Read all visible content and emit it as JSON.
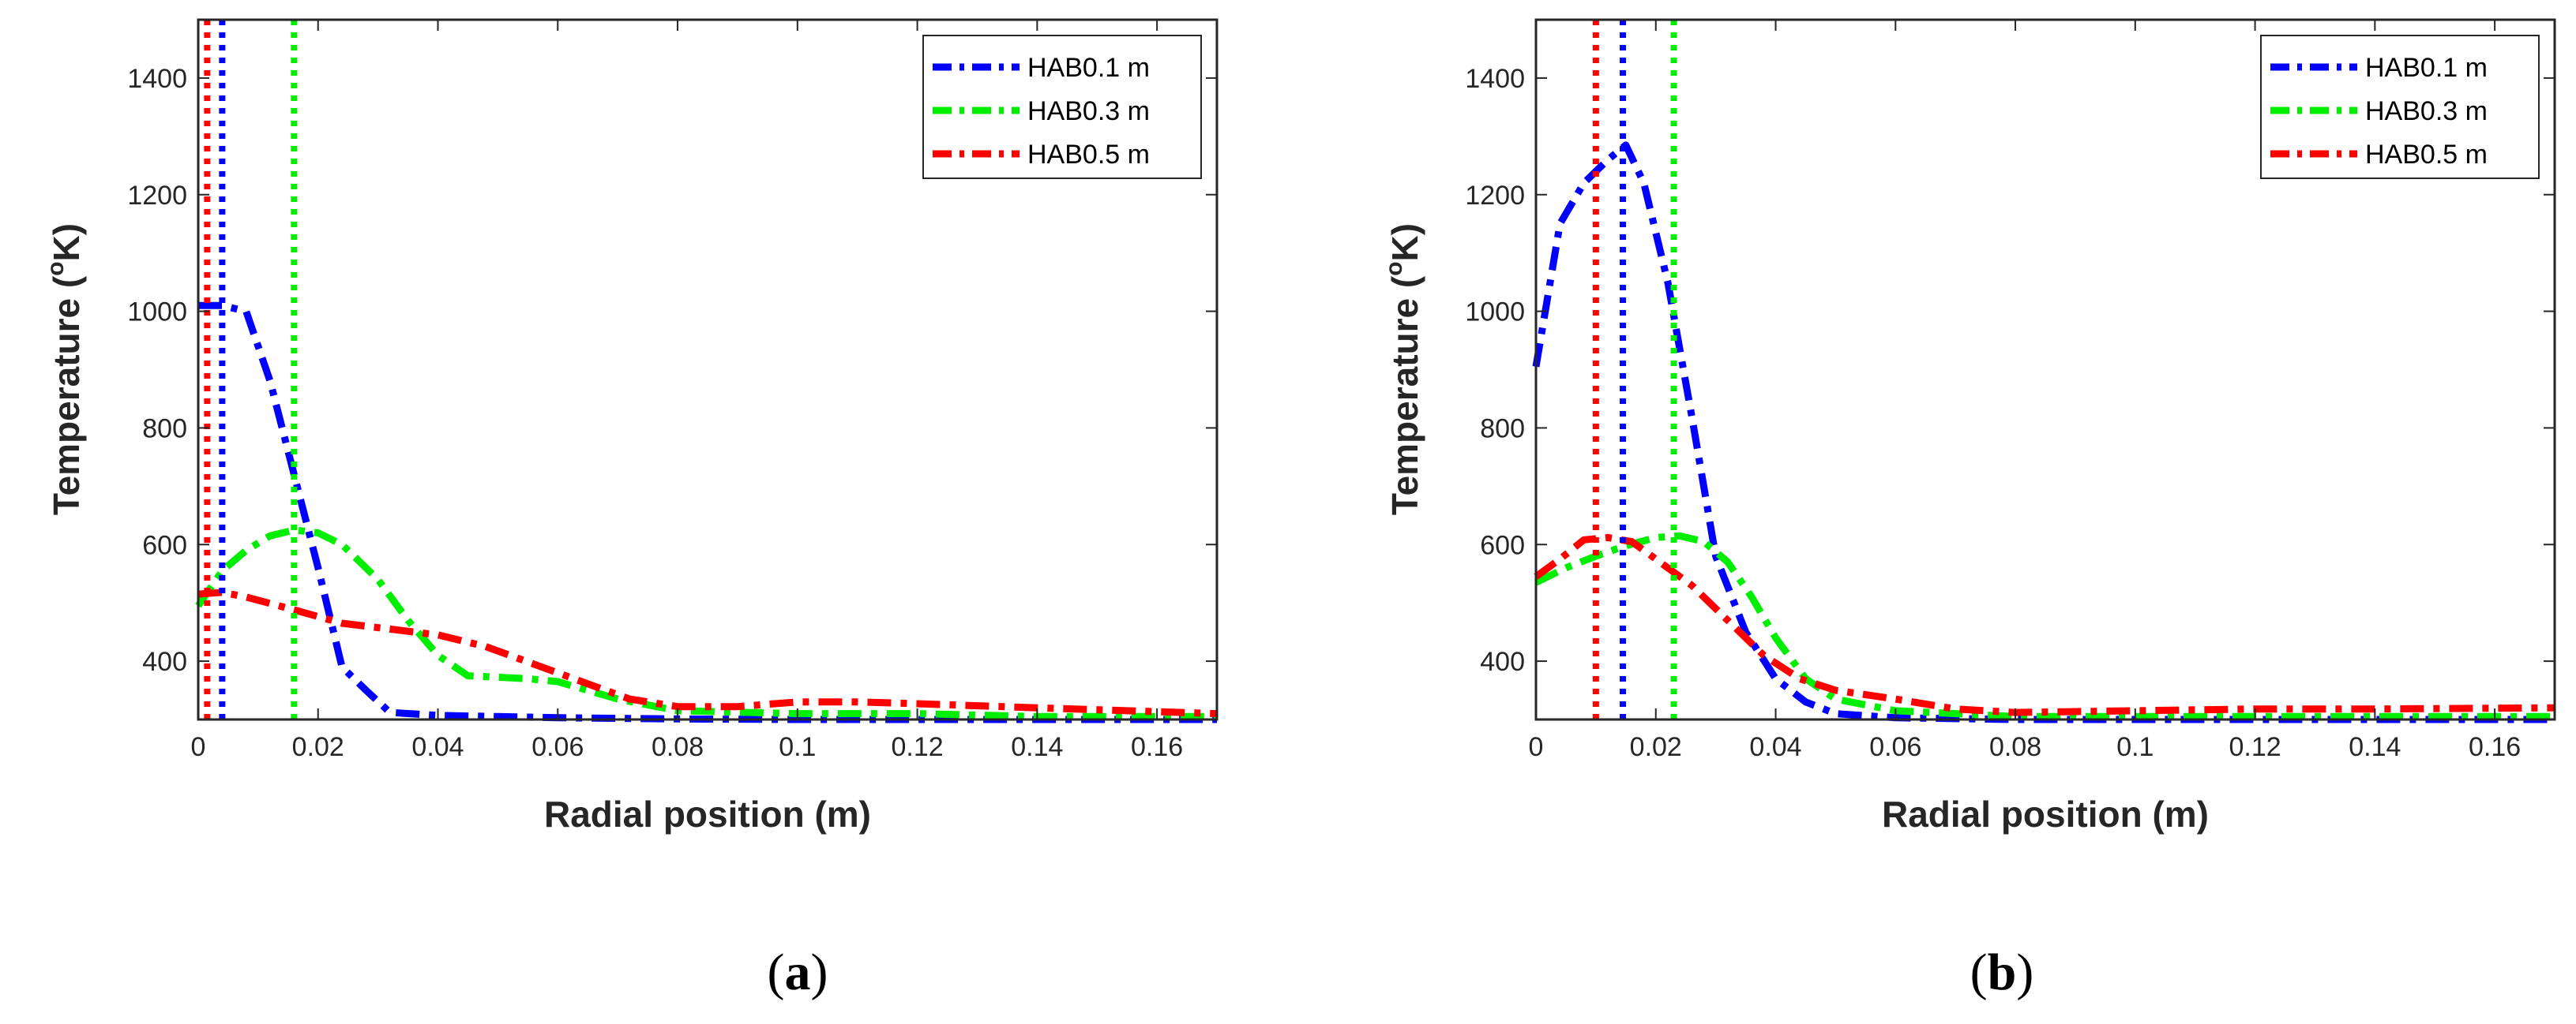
{
  "chart_data": [
    {
      "type": "line",
      "panel_label": "a",
      "xlabel": "Radial position (m)",
      "ylabel_main": "Temperature (",
      "ylabel_degree": "o",
      "ylabel_unit": "K)",
      "xlim": [
        0,
        0.17
      ],
      "ylim": [
        300,
        1500
      ],
      "xticks": [
        0,
        0.02,
        0.04,
        0.06,
        0.08,
        0.1,
        0.12,
        0.14,
        0.16
      ],
      "xtick_labels": [
        "0",
        "0.02",
        "0.04",
        "0.06",
        "0.08",
        "0.1",
        "0.12",
        "0.14",
        "0.16"
      ],
      "yticks": [
        400,
        600,
        800,
        1000,
        1200,
        1400
      ],
      "ytick_labels": [
        "400",
        "600",
        "800",
        "1000",
        "1200",
        "1400"
      ],
      "legend_position": "top-right",
      "series": [
        {
          "name": "HAB0.1 m",
          "color": "#0000ff",
          "x": [
            0,
            0.004,
            0.008,
            0.012,
            0.016,
            0.02,
            0.024,
            0.028,
            0.032,
            0.04,
            0.05,
            0.06,
            0.08,
            0.1,
            0.12,
            0.14,
            0.17
          ],
          "y": [
            1010,
            1010,
            1000,
            880,
            720,
            560,
            390,
            350,
            312,
            307,
            305,
            303,
            301,
            300,
            300,
            300,
            300
          ]
        },
        {
          "name": "HAB0.3 m",
          "color": "#00ee00",
          "x": [
            0,
            0.004,
            0.008,
            0.012,
            0.016,
            0.02,
            0.024,
            0.03,
            0.035,
            0.04,
            0.045,
            0.055,
            0.06,
            0.07,
            0.08,
            0.1,
            0.12,
            0.14,
            0.17
          ],
          "y": [
            495,
            555,
            590,
            615,
            625,
            620,
            600,
            540,
            470,
            410,
            375,
            370,
            365,
            335,
            315,
            310,
            310,
            305,
            305
          ]
        },
        {
          "name": "HAB0.5 m",
          "color": "#ff0000",
          "x": [
            0,
            0.004,
            0.008,
            0.016,
            0.024,
            0.032,
            0.04,
            0.048,
            0.056,
            0.064,
            0.072,
            0.08,
            0.09,
            0.1,
            0.11,
            0.12,
            0.14,
            0.17
          ],
          "y": [
            515,
            518,
            510,
            488,
            465,
            455,
            445,
            425,
            395,
            365,
            335,
            322,
            322,
            330,
            330,
            327,
            320,
            310
          ]
        }
      ],
      "vlines": [
        {
          "x": 0.0015,
          "color": "#ff0000"
        },
        {
          "x": 0.004,
          "color": "#0000ff"
        },
        {
          "x": 0.016,
          "color": "#00ee00"
        }
      ]
    },
    {
      "type": "line",
      "panel_label": "b",
      "xlabel": "Radial position (m)",
      "ylabel_main": "Temperature (",
      "ylabel_degree": "o",
      "ylabel_unit": "K)",
      "xlim": [
        0,
        0.17
      ],
      "ylim": [
        300,
        1500
      ],
      "xticks": [
        0,
        0.02,
        0.04,
        0.06,
        0.08,
        0.1,
        0.12,
        0.14,
        0.16
      ],
      "xtick_labels": [
        "0",
        "0.02",
        "0.04",
        "0.06",
        "0.08",
        "0.1",
        "0.12",
        "0.14",
        "0.16"
      ],
      "yticks": [
        400,
        600,
        800,
        1000,
        1200,
        1400
      ],
      "ytick_labels": [
        "400",
        "600",
        "800",
        "1000",
        "1200",
        "1400"
      ],
      "legend_position": "top-right",
      "series": [
        {
          "name": "HAB0.1 m",
          "color": "#0000ff",
          "x": [
            0,
            0.004,
            0.008,
            0.012,
            0.015,
            0.018,
            0.022,
            0.026,
            0.03,
            0.035,
            0.04,
            0.045,
            0.05,
            0.06,
            0.08,
            0.1,
            0.12,
            0.14,
            0.17
          ],
          "y": [
            905,
            1150,
            1220,
            1260,
            1285,
            1220,
            1050,
            820,
            580,
            450,
            370,
            330,
            310,
            303,
            300,
            300,
            300,
            300,
            300
          ]
        },
        {
          "name": "HAB0.3 m",
          "color": "#00ee00",
          "x": [
            0,
            0.005,
            0.01,
            0.015,
            0.02,
            0.024,
            0.028,
            0.032,
            0.036,
            0.04,
            0.045,
            0.05,
            0.06,
            0.08,
            0.1,
            0.12,
            0.14,
            0.17
          ],
          "y": [
            535,
            560,
            580,
            598,
            612,
            615,
            605,
            570,
            510,
            440,
            370,
            335,
            315,
            305,
            305,
            305,
            305,
            305
          ]
        },
        {
          "name": "HAB0.5 m",
          "color": "#ff0000",
          "x": [
            0,
            0.004,
            0.008,
            0.012,
            0.016,
            0.02,
            0.026,
            0.032,
            0.038,
            0.044,
            0.05,
            0.06,
            0.07,
            0.08,
            0.1,
            0.12,
            0.14,
            0.17
          ],
          "y": [
            545,
            575,
            608,
            612,
            605,
            575,
            530,
            470,
            410,
            370,
            350,
            335,
            318,
            312,
            315,
            318,
            318,
            320
          ]
        }
      ],
      "vlines": [
        {
          "x": 0.01,
          "color": "#ff0000"
        },
        {
          "x": 0.0145,
          "color": "#0000ff"
        },
        {
          "x": 0.023,
          "color": "#00ee00"
        }
      ]
    }
  ]
}
